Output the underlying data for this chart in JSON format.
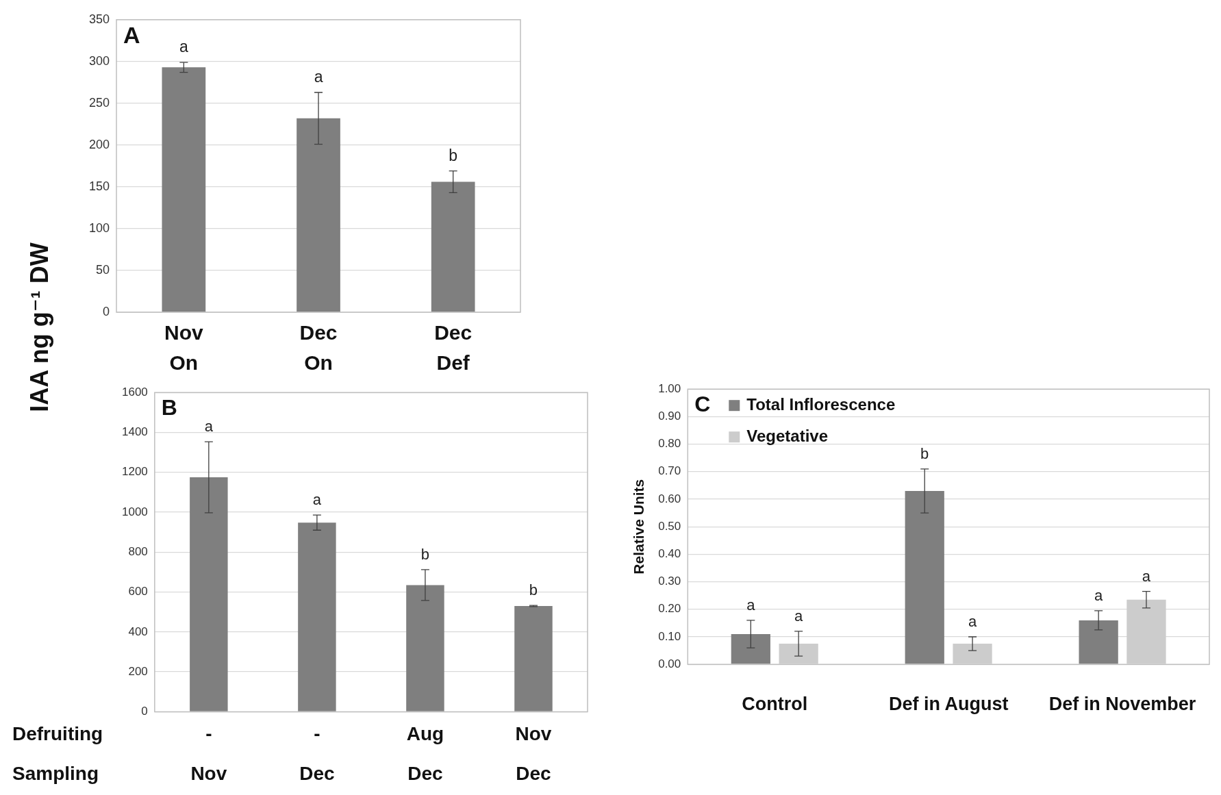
{
  "chart_data": [
    {
      "type": "bar",
      "title": "A",
      "ylabel": "IAA ng g⁻¹ DW",
      "categories": [
        "Nov\nOn",
        "Dec\nOn",
        "Dec\nDef"
      ],
      "series": [
        {
          "color": "#7f7f7f",
          "values": [
            293,
            232,
            156
          ],
          "errors": [
            6,
            31,
            13
          ],
          "value_labels": [
            "a",
            "a",
            "b"
          ]
        }
      ],
      "ylim": [
        0,
        350
      ],
      "yticks": [
        0,
        50,
        100,
        150,
        200,
        250,
        300,
        350
      ],
      "grid": "y"
    },
    {
      "type": "bar",
      "title": "B",
      "categories": [
        "-\nNov",
        "-\nDec",
        "Aug\nDec",
        "Nov\nDec"
      ],
      "series": [
        {
          "color": "#7f7f7f",
          "values": [
            1175,
            948,
            635,
            530
          ],
          "errors": [
            178,
            38,
            77,
            3
          ],
          "value_labels": [
            "a",
            "a",
            "b",
            "b"
          ]
        }
      ],
      "ylim": [
        0,
        1600
      ],
      "yticks": [
        0,
        200,
        400,
        600,
        800,
        1000,
        1200,
        1400,
        1600
      ],
      "grid": "y",
      "annotations": [
        "Defruiting",
        "Sampling"
      ]
    },
    {
      "type": "bar",
      "title": "C",
      "ylabel": "Relative Units",
      "categories": [
        "Control",
        "Def in August",
        "Def in November"
      ],
      "series": [
        {
          "name": "Total Inflorescence",
          "color": "#7f7f7f",
          "values": [
            0.11,
            0.63,
            0.16
          ],
          "errors": [
            0.05,
            0.08,
            0.035
          ],
          "value_labels": [
            "a",
            "b",
            "a"
          ]
        },
        {
          "name": "Vegetative",
          "color": "#cccccc",
          "values": [
            0.075,
            0.075,
            0.235
          ],
          "errors": [
            0.045,
            0.025,
            0.03
          ],
          "value_labels": [
            "a",
            "a",
            "a"
          ]
        }
      ],
      "ylim": [
        0,
        1
      ],
      "yticks": [
        {
          "value": 0,
          "label": "0.00"
        },
        {
          "value": 0.1,
          "label": "0.10"
        },
        {
          "value": 0.2,
          "label": "0.20"
        },
        {
          "value": 0.3,
          "label": "0.30"
        },
        {
          "value": 0.4,
          "label": "0.40"
        },
        {
          "value": 0.5,
          "label": "0.50"
        },
        {
          "value": 0.6,
          "label": "0.60"
        },
        {
          "value": 0.7,
          "label": "0.70"
        },
        {
          "value": 0.8,
          "label": "0.80"
        },
        {
          "value": 0.9,
          "label": "0.90"
        },
        {
          "value": 1,
          "label": "1.00"
        }
      ],
      "grid": "y",
      "legend": "top left"
    }
  ]
}
